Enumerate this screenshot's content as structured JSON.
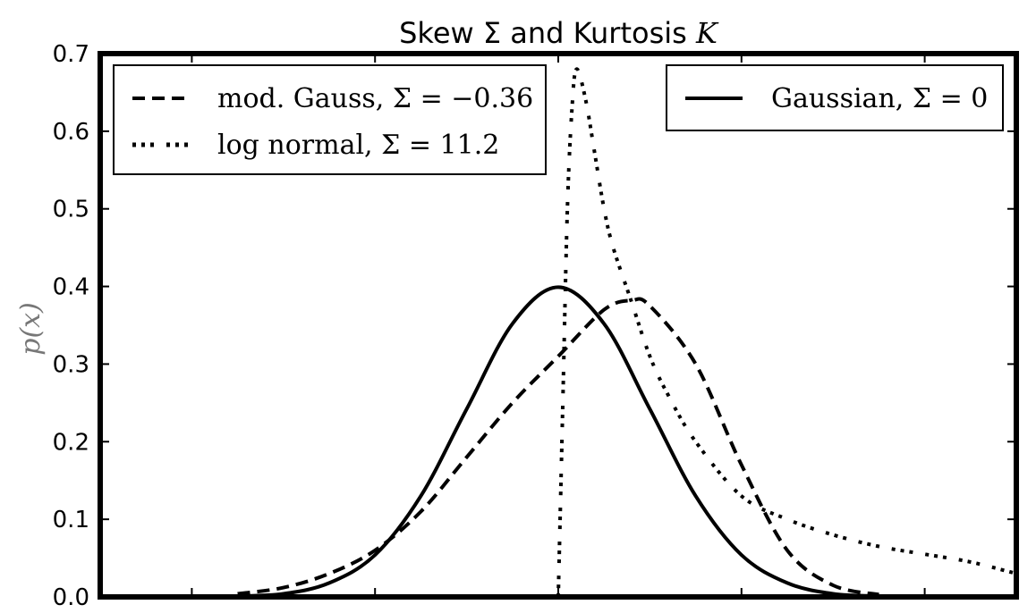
{
  "chart_data": {
    "type": "line",
    "title": "Skew Σ and Kurtosis K",
    "title_parts": {
      "prefix": "Skew Σ and Kurtosis ",
      "var": "K"
    },
    "ylabel": "p(x)",
    "xlabel": "",
    "xlim": [
      -5,
      5
    ],
    "ylim": [
      0,
      0.7
    ],
    "yticks": [
      "0.0",
      "0.1",
      "0.2",
      "0.3",
      "0.4",
      "0.5",
      "0.6",
      "0.7"
    ],
    "xticks_labeled": false,
    "grid": false,
    "legends": [
      {
        "placement": "top-left",
        "entries": [
          "mod. Gauss, Σ = −0.36",
          "log normal, Σ = 11.2"
        ]
      },
      {
        "placement": "top-right",
        "entries": [
          "Gaussian, Σ = 0"
        ]
      }
    ],
    "series": [
      {
        "name": "Gaussian, Σ = 0",
        "style": "solid",
        "x": [
          -3.5,
          -3.0,
          -2.5,
          -2.0,
          -1.5,
          -1.0,
          -0.5,
          0.0,
          0.5,
          1.0,
          1.5,
          2.0,
          2.5,
          3.0,
          3.5
        ],
        "y": [
          0.001,
          0.004,
          0.018,
          0.054,
          0.13,
          0.242,
          0.352,
          0.399,
          0.352,
          0.242,
          0.13,
          0.054,
          0.018,
          0.004,
          0.001
        ]
      },
      {
        "name": "mod. Gauss, Σ = −0.36",
        "style": "dashed",
        "x": [
          -3.5,
          -3.0,
          -2.5,
          -2.0,
          -1.5,
          -1.0,
          -0.5,
          0.0,
          0.5,
          0.8,
          1.0,
          1.5,
          2.0,
          2.5,
          3.0,
          3.5
        ],
        "y": [
          0.004,
          0.012,
          0.03,
          0.06,
          0.11,
          0.18,
          0.25,
          0.31,
          0.37,
          0.382,
          0.375,
          0.3,
          0.17,
          0.06,
          0.015,
          0.003
        ]
      },
      {
        "name": "log normal, Σ = 11.2",
        "style": "dash-dot-dot",
        "x": [
          0.0,
          0.05,
          0.1,
          0.15,
          0.2,
          0.3,
          0.4,
          0.5,
          0.6,
          0.8,
          1.0,
          1.2,
          1.5,
          2.0,
          2.5,
          3.0,
          3.5,
          4.0,
          4.5,
          5.0
        ],
        "y": [
          0.0,
          0.25,
          0.5,
          0.63,
          0.68,
          0.64,
          0.57,
          0.5,
          0.45,
          0.38,
          0.31,
          0.26,
          0.2,
          0.13,
          0.1,
          0.08,
          0.065,
          0.055,
          0.045,
          0.03
        ]
      }
    ]
  }
}
